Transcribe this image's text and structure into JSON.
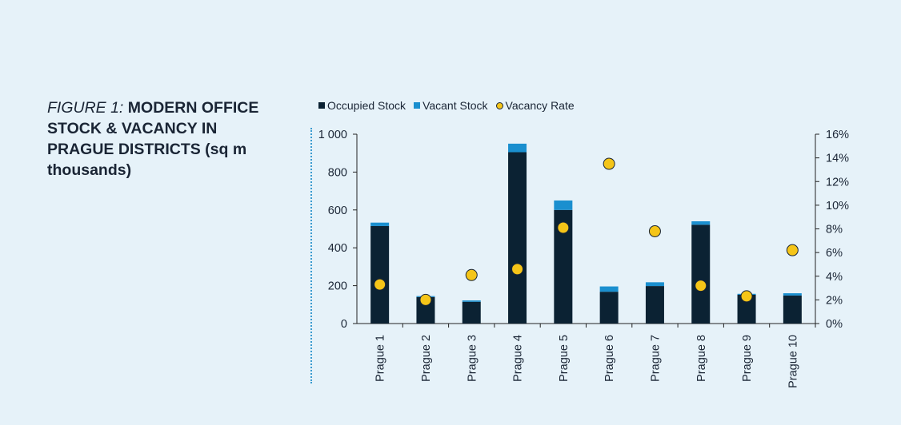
{
  "figure": {
    "label": "FIGURE 1:",
    "title": "MODERN OFFICE STOCK & VACANCY IN PRAGUE DISTRICTS (sq m thousands)"
  },
  "legend": [
    {
      "name": "Occupied Stock",
      "color": "#0b2233",
      "shape": "square"
    },
    {
      "name": "Vacant Stock",
      "color": "#1a8fcf",
      "shape": "square"
    },
    {
      "name": "Vacancy Rate",
      "color": "#f5c518",
      "shape": "circle"
    }
  ],
  "chart_data": {
    "type": "bar",
    "stacked": true,
    "categories": [
      "Prague 1",
      "Prague 2",
      "Prague 3",
      "Prague 4",
      "Prague 5",
      "Prague 6",
      "Prague 7",
      "Prague 8",
      "Prague 9",
      "Prague 10"
    ],
    "series": [
      {
        "name": "Occupied Stock",
        "type": "bar",
        "axis": "left",
        "color": "#0b2233",
        "values": [
          515,
          140,
          115,
          905,
          600,
          168,
          198,
          522,
          152,
          148
        ]
      },
      {
        "name": "Vacant Stock",
        "type": "bar",
        "axis": "left",
        "color": "#1a8fcf",
        "values": [
          18,
          5,
          7,
          45,
          50,
          28,
          20,
          18,
          5,
          12
        ]
      },
      {
        "name": "Vacancy Rate",
        "type": "scatter",
        "axis": "right",
        "color": "#f5c518",
        "values": [
          3.3,
          2.0,
          4.1,
          4.6,
          8.1,
          13.5,
          7.8,
          3.2,
          2.3,
          6.2
        ]
      }
    ],
    "ylim": [
      0,
      1000
    ],
    "y_ticks": [
      "0",
      "200",
      "400",
      "600",
      "800",
      "1 000"
    ],
    "y2lim": [
      0,
      16
    ],
    "y2_ticks": [
      "0%",
      "2%",
      "4%",
      "6%",
      "8%",
      "10%",
      "12%",
      "14%",
      "16%"
    ],
    "legend_position": "top",
    "grid": false
  }
}
